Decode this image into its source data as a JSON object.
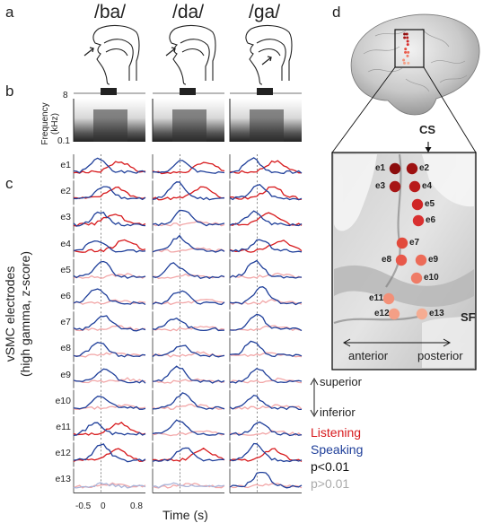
{
  "panel_labels": {
    "a": "a",
    "b": "b",
    "c": "c",
    "d": "d"
  },
  "syllables": [
    "/ba/",
    "/da/",
    "/ga/"
  ],
  "spectrogram": {
    "ylabel": "Frequency\n(kHz)",
    "ylabel_line1": "Frequency",
    "ylabel_line2": "(kHz)",
    "tick_top": "8",
    "tick_bottom": "0.1"
  },
  "traces": {
    "ylabel_line1": "vSMC electrodes",
    "ylabel_line2": "(high gamma, z-score)",
    "xlabel": "Time (s)",
    "xticks": [
      "-0.5",
      "0",
      "0.8"
    ],
    "electrodes": [
      "e1",
      "e2",
      "e3",
      "e4",
      "e5",
      "e6",
      "e7",
      "e8",
      "e9",
      "e10",
      "e11",
      "e12",
      "e13"
    ]
  },
  "legend": {
    "superior": "superior",
    "inferior": "inferior",
    "listening": "Listening",
    "speaking": "Speaking",
    "sig": "p<0.01",
    "nonsig": "p>0.01"
  },
  "colors": {
    "listening": "#d7191c",
    "speaking": "#1f3f9a",
    "listening_faint": "#f2a7a8",
    "speaking_faint": "#a9b3d8",
    "nonsig_text": "#aaaaaa"
  },
  "brain": {
    "cs_label": "CS",
    "sf_label": "SF",
    "anterior": "anterior",
    "posterior": "posterior",
    "electrodes": [
      "e1",
      "e2",
      "e3",
      "e4",
      "e5",
      "e6",
      "e7",
      "e8",
      "e9",
      "e10",
      "e11",
      "e12",
      "e13"
    ]
  },
  "chart_data": {
    "type": "line",
    "x_range": [
      -0.5,
      0.8
    ],
    "significant_listening": {
      "ba": [
        true,
        true,
        true,
        true,
        false,
        false,
        false,
        false,
        false,
        false,
        true,
        true,
        false
      ],
      "da": [
        true,
        true,
        false,
        false,
        false,
        false,
        false,
        false,
        false,
        false,
        false,
        true,
        false
      ],
      "ga": [
        true,
        true,
        true,
        true,
        false,
        false,
        false,
        false,
        false,
        false,
        false,
        true,
        false
      ]
    }
  }
}
